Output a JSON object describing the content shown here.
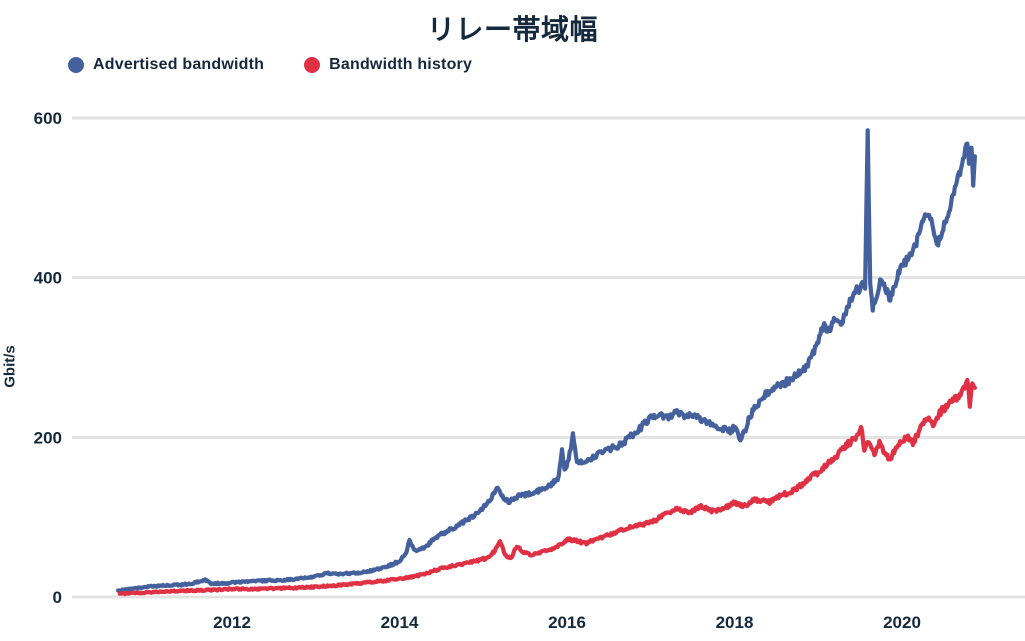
{
  "chart": {
    "title": "リレー帯域幅",
    "ylabel": "Gbit/s"
  },
  "legend": [
    {
      "label": "Advertised bandwidth",
      "color": "#44619e"
    },
    {
      "label": "Bandwidth history",
      "color": "#e03044"
    }
  ],
  "colors": {
    "text": "#14293e",
    "gridline": "#e3e3e3",
    "background": "#ffffff"
  },
  "chart_data": {
    "type": "line",
    "title": "リレー帯域幅",
    "xlabel": "",
    "ylabel": "Gbit/s",
    "x_unit": "year (decimal)",
    "y_unit": "Gbit/s",
    "xticks": [
      2012,
      2014,
      2016,
      2018,
      2020
    ],
    "yticks": [
      0,
      200,
      400,
      600
    ],
    "xlim": [
      2010.1,
      2021.45
    ],
    "ylim": [
      0,
      600
    ],
    "grid": "horizontal",
    "legend_position": "top-left",
    "series": [
      {
        "name": "Advertised bandwidth",
        "color": "#44619e",
        "points": [
          [
            2010.64,
            8
          ],
          [
            2010.8,
            10
          ],
          [
            2011.0,
            13
          ],
          [
            2011.15,
            14
          ],
          [
            2011.3,
            15
          ],
          [
            2011.5,
            16
          ],
          [
            2011.62,
            20
          ],
          [
            2011.68,
            21
          ],
          [
            2011.75,
            17
          ],
          [
            2011.9,
            17
          ],
          [
            2012.0,
            18
          ],
          [
            2012.2,
            19
          ],
          [
            2012.45,
            21
          ],
          [
            2012.6,
            21
          ],
          [
            2012.8,
            23
          ],
          [
            2013.0,
            26
          ],
          [
            2013.15,
            30
          ],
          [
            2013.3,
            29
          ],
          [
            2013.5,
            30
          ],
          [
            2013.7,
            34
          ],
          [
            2013.85,
            38
          ],
          [
            2014.0,
            45
          ],
          [
            2014.08,
            55
          ],
          [
            2014.12,
            71
          ],
          [
            2014.18,
            58
          ],
          [
            2014.3,
            62
          ],
          [
            2014.45,
            76
          ],
          [
            2014.6,
            84
          ],
          [
            2014.75,
            93
          ],
          [
            2014.9,
            103
          ],
          [
            2015.0,
            112
          ],
          [
            2015.1,
            124
          ],
          [
            2015.16,
            138
          ],
          [
            2015.22,
            126
          ],
          [
            2015.3,
            119
          ],
          [
            2015.4,
            126
          ],
          [
            2015.5,
            128
          ],
          [
            2015.62,
            131
          ],
          [
            2015.72,
            135
          ],
          [
            2015.82,
            141
          ],
          [
            2015.9,
            150
          ],
          [
            2015.94,
            182
          ],
          [
            2015.97,
            160
          ],
          [
            2016.02,
            172
          ],
          [
            2016.07,
            203
          ],
          [
            2016.12,
            166
          ],
          [
            2016.2,
            170
          ],
          [
            2016.3,
            174
          ],
          [
            2016.42,
            181
          ],
          [
            2016.52,
            186
          ],
          [
            2016.63,
            190
          ],
          [
            2016.75,
            200
          ],
          [
            2016.87,
            211
          ],
          [
            2017.0,
            226
          ],
          [
            2017.1,
            229
          ],
          [
            2017.2,
            225
          ],
          [
            2017.3,
            231
          ],
          [
            2017.4,
            228
          ],
          [
            2017.5,
            226
          ],
          [
            2017.62,
            222
          ],
          [
            2017.75,
            216
          ],
          [
            2017.85,
            212
          ],
          [
            2017.95,
            208
          ],
          [
            2018.02,
            214
          ],
          [
            2018.07,
            195
          ],
          [
            2018.12,
            207
          ],
          [
            2018.18,
            226
          ],
          [
            2018.25,
            239
          ],
          [
            2018.32,
            248
          ],
          [
            2018.42,
            259
          ],
          [
            2018.55,
            266
          ],
          [
            2018.66,
            272
          ],
          [
            2018.78,
            281
          ],
          [
            2018.9,
            295
          ],
          [
            2019.0,
            320
          ],
          [
            2019.06,
            341
          ],
          [
            2019.12,
            332
          ],
          [
            2019.2,
            347
          ],
          [
            2019.27,
            341
          ],
          [
            2019.33,
            356
          ],
          [
            2019.4,
            376
          ],
          [
            2019.46,
            391
          ],
          [
            2019.5,
            381
          ],
          [
            2019.53,
            396
          ],
          [
            2019.56,
            388
          ],
          [
            2019.59,
            583
          ],
          [
            2019.62,
            388
          ],
          [
            2019.65,
            362
          ],
          [
            2019.7,
            378
          ],
          [
            2019.74,
            396
          ],
          [
            2019.8,
            386
          ],
          [
            2019.86,
            374
          ],
          [
            2019.92,
            390
          ],
          [
            2019.98,
            415
          ],
          [
            2020.08,
            424
          ],
          [
            2020.16,
            440
          ],
          [
            2020.24,
            466
          ],
          [
            2020.3,
            483
          ],
          [
            2020.35,
            470
          ],
          [
            2020.42,
            442
          ],
          [
            2020.48,
            458
          ],
          [
            2020.55,
            481
          ],
          [
            2020.62,
            506
          ],
          [
            2020.68,
            528
          ],
          [
            2020.73,
            547
          ],
          [
            2020.78,
            568
          ],
          [
            2020.8,
            542
          ],
          [
            2020.83,
            566
          ],
          [
            2020.85,
            517
          ],
          [
            2020.87,
            552
          ]
        ]
      },
      {
        "name": "Bandwidth history",
        "color": "#e03044",
        "points": [
          [
            2010.66,
            4
          ],
          [
            2011.0,
            6
          ],
          [
            2011.5,
            8
          ],
          [
            2011.8,
            9
          ],
          [
            2012.0,
            10
          ],
          [
            2012.3,
            10
          ],
          [
            2012.6,
            11
          ],
          [
            2012.9,
            12
          ],
          [
            2013.2,
            14
          ],
          [
            2013.5,
            17
          ],
          [
            2013.8,
            20
          ],
          [
            2014.0,
            23
          ],
          [
            2014.15,
            25
          ],
          [
            2014.3,
            29
          ],
          [
            2014.5,
            36
          ],
          [
            2014.7,
            40
          ],
          [
            2014.9,
            45
          ],
          [
            2015.05,
            49
          ],
          [
            2015.14,
            58
          ],
          [
            2015.2,
            69
          ],
          [
            2015.27,
            52
          ],
          [
            2015.33,
            49
          ],
          [
            2015.4,
            63
          ],
          [
            2015.48,
            56
          ],
          [
            2015.57,
            53
          ],
          [
            2015.7,
            56
          ],
          [
            2015.85,
            61
          ],
          [
            2015.95,
            68
          ],
          [
            2016.02,
            72
          ],
          [
            2016.12,
            70
          ],
          [
            2016.22,
            67
          ],
          [
            2016.32,
            71
          ],
          [
            2016.42,
            75
          ],
          [
            2016.55,
            80
          ],
          [
            2016.68,
            85
          ],
          [
            2016.8,
            89
          ],
          [
            2016.95,
            92
          ],
          [
            2017.05,
            96
          ],
          [
            2017.15,
            102
          ],
          [
            2017.3,
            111
          ],
          [
            2017.45,
            105
          ],
          [
            2017.6,
            113
          ],
          [
            2017.75,
            107
          ],
          [
            2017.88,
            112
          ],
          [
            2018.0,
            118
          ],
          [
            2018.12,
            114
          ],
          [
            2018.25,
            122
          ],
          [
            2018.42,
            119
          ],
          [
            2018.55,
            128
          ],
          [
            2018.66,
            131
          ],
          [
            2018.78,
            139
          ],
          [
            2018.9,
            150
          ],
          [
            2019.0,
            156
          ],
          [
            2019.1,
            167
          ],
          [
            2019.2,
            175
          ],
          [
            2019.32,
            189
          ],
          [
            2019.42,
            197
          ],
          [
            2019.48,
            205
          ],
          [
            2019.51,
            215
          ],
          [
            2019.55,
            185
          ],
          [
            2019.6,
            196
          ],
          [
            2019.67,
            179
          ],
          [
            2019.73,
            192
          ],
          [
            2019.8,
            181
          ],
          [
            2019.86,
            172
          ],
          [
            2019.93,
            188
          ],
          [
            2020.0,
            196
          ],
          [
            2020.07,
            201
          ],
          [
            2020.13,
            193
          ],
          [
            2020.2,
            206
          ],
          [
            2020.27,
            222
          ],
          [
            2020.32,
            228
          ],
          [
            2020.37,
            215
          ],
          [
            2020.45,
            231
          ],
          [
            2020.55,
            240
          ],
          [
            2020.63,
            247
          ],
          [
            2020.7,
            256
          ],
          [
            2020.75,
            264
          ],
          [
            2020.78,
            272
          ],
          [
            2020.81,
            241
          ],
          [
            2020.84,
            263
          ],
          [
            2020.87,
            262
          ]
        ]
      }
    ]
  }
}
